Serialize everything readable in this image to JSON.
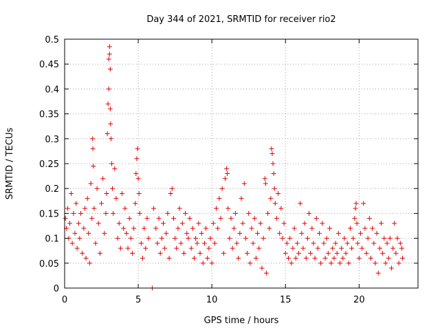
{
  "chart_data": {
    "type": "scatter",
    "title": "Day 344 of 2021, SRMTID for receiver rio2",
    "xlabel": "GPS time / hours",
    "ylabel": "SRMTID / TECUs",
    "xlim": [
      0,
      24
    ],
    "ylim": [
      0,
      0.5
    ],
    "xticks": [
      0,
      5,
      10,
      15,
      20
    ],
    "xtick_labels": [
      "0",
      "5",
      "10",
      "15",
      "20"
    ],
    "yticks": [
      0,
      0.05,
      0.1,
      0.15,
      0.2,
      0.25,
      0.3,
      0.35,
      0.4,
      0.45,
      0.5
    ],
    "ytick_labels": [
      "0",
      "0.05",
      "0.1",
      "0.15",
      "0.2",
      "0.25",
      "0.3",
      "0.35",
      "0.4",
      "0.45",
      "0.5"
    ],
    "grid": true,
    "marker": "plus",
    "color": "#e00000",
    "series": [
      {
        "name": "SRMTID",
        "points": [
          [
            0.05,
            0.14
          ],
          [
            0.12,
            0.12
          ],
          [
            0.2,
            0.16
          ],
          [
            0.28,
            0.1
          ],
          [
            0.35,
            0.13
          ],
          [
            0.45,
            0.19
          ],
          [
            0.52,
            0.09
          ],
          [
            0.6,
            0.15
          ],
          [
            0.7,
            0.11
          ],
          [
            0.78,
            0.17
          ],
          [
            0.85,
            0.08
          ],
          [
            0.95,
            0.13
          ],
          [
            1.02,
            0.1
          ],
          [
            1.1,
            0.15
          ],
          [
            1.2,
            0.07
          ],
          [
            1.3,
            0.12
          ],
          [
            1.38,
            0.16
          ],
          [
            1.45,
            0.06
          ],
          [
            1.55,
            0.18
          ],
          [
            1.62,
            0.11
          ],
          [
            1.7,
            0.05
          ],
          [
            1.78,
            0.21
          ],
          [
            1.85,
            0.14
          ],
          [
            1.9,
            0.3
          ],
          [
            1.92,
            0.28
          ],
          [
            1.95,
            0.245
          ],
          [
            2.0,
            0.16
          ],
          [
            2.1,
            0.09
          ],
          [
            2.2,
            0.2
          ],
          [
            2.3,
            0.13
          ],
          [
            2.4,
            0.07
          ],
          [
            2.5,
            0.17
          ],
          [
            2.6,
            0.22
          ],
          [
            2.7,
            0.11
          ],
          [
            2.8,
            0.15
          ],
          [
            2.85,
            0.19
          ],
          [
            2.9,
            0.31
          ],
          [
            2.95,
            0.37
          ],
          [
            3.0,
            0.4
          ],
          [
            3.0,
            0.46
          ],
          [
            3.05,
            0.485
          ],
          [
            3.05,
            0.47
          ],
          [
            3.1,
            0.44
          ],
          [
            3.1,
            0.36
          ],
          [
            3.12,
            0.33
          ],
          [
            3.15,
            0.3
          ],
          [
            3.2,
            0.25
          ],
          [
            3.25,
            0.2
          ],
          [
            3.3,
            0.15
          ],
          [
            3.4,
            0.24
          ],
          [
            3.5,
            0.18
          ],
          [
            3.6,
            0.1
          ],
          [
            3.7,
            0.13
          ],
          [
            3.8,
            0.08
          ],
          [
            3.9,
            0.19
          ],
          [
            4.0,
            0.12
          ],
          [
            4.1,
            0.16
          ],
          [
            4.2,
            0.11
          ],
          [
            4.3,
            0.08
          ],
          [
            4.4,
            0.14
          ],
          [
            4.5,
            0.1
          ],
          [
            4.6,
            0.07
          ],
          [
            4.7,
            0.12
          ],
          [
            4.8,
            0.17
          ],
          [
            4.85,
            0.23
          ],
          [
            4.9,
            0.26
          ],
          [
            4.95,
            0.28
          ],
          [
            5.0,
            0.22
          ],
          [
            5.05,
            0.19
          ],
          [
            5.1,
            0.15
          ],
          [
            5.2,
            0.09
          ],
          [
            5.3,
            0.06
          ],
          [
            5.4,
            0.12
          ],
          [
            5.5,
            0.08
          ],
          [
            5.6,
            0.14
          ],
          [
            5.7,
            0.1
          ],
          [
            5.95,
            0.0
          ],
          [
            6.05,
            0.16
          ],
          [
            6.2,
            0.12
          ],
          [
            6.3,
            0.09
          ],
          [
            6.4,
            0.14
          ],
          [
            6.5,
            0.07
          ],
          [
            6.6,
            0.1
          ],
          [
            6.7,
            0.13
          ],
          [
            6.8,
            0.08
          ],
          [
            6.9,
            0.11
          ],
          [
            7.0,
            0.15
          ],
          [
            7.1,
            0.06
          ],
          [
            7.2,
            0.19
          ],
          [
            7.3,
            0.2
          ],
          [
            7.4,
            0.14
          ],
          [
            7.5,
            0.1
          ],
          [
            7.6,
            0.08
          ],
          [
            7.7,
            0.12
          ],
          [
            7.8,
            0.16
          ],
          [
            7.9,
            0.09
          ],
          [
            8.0,
            0.13
          ],
          [
            8.1,
            0.07
          ],
          [
            8.2,
            0.15
          ],
          [
            8.3,
            0.11
          ],
          [
            8.4,
            0.1
          ],
          [
            8.5,
            0.14
          ],
          [
            8.6,
            0.08
          ],
          [
            8.7,
            0.12
          ],
          [
            8.8,
            0.06
          ],
          [
            8.9,
            0.1
          ],
          [
            9.0,
            0.09
          ],
          [
            9.1,
            0.13
          ],
          [
            9.2,
            0.07
          ],
          [
            9.3,
            0.11
          ],
          [
            9.4,
            0.05
          ],
          [
            9.5,
            0.09
          ],
          [
            9.6,
            0.12
          ],
          [
            9.7,
            0.06
          ],
          [
            9.8,
            0.08
          ],
          [
            9.9,
            0.1
          ],
          [
            10.0,
            0.05
          ],
          [
            10.1,
            0.13
          ],
          [
            10.2,
            0.09
          ],
          [
            10.3,
            0.16
          ],
          [
            10.4,
            0.12
          ],
          [
            10.5,
            0.18
          ],
          [
            10.6,
            0.14
          ],
          [
            10.7,
            0.2
          ],
          [
            10.8,
            0.07
          ],
          [
            10.9,
            0.22
          ],
          [
            11.0,
            0.24
          ],
          [
            11.05,
            0.23
          ],
          [
            11.1,
            0.16
          ],
          [
            11.2,
            0.1
          ],
          [
            11.3,
            0.14
          ],
          [
            11.4,
            0.08
          ],
          [
            11.5,
            0.12
          ],
          [
            11.6,
            0.15
          ],
          [
            11.7,
            0.09
          ],
          [
            11.8,
            0.06
          ],
          [
            11.9,
            0.11
          ],
          [
            12.0,
            0.18
          ],
          [
            12.1,
            0.13
          ],
          [
            12.2,
            0.21
          ],
          [
            12.3,
            0.1
          ],
          [
            12.4,
            0.07
          ],
          [
            12.5,
            0.15
          ],
          [
            12.6,
            0.05
          ],
          [
            12.7,
            0.12
          ],
          [
            12.8,
            0.09
          ],
          [
            12.9,
            0.14
          ],
          [
            13.0,
            0.06
          ],
          [
            13.1,
            0.11
          ],
          [
            13.2,
            0.08
          ],
          [
            13.3,
            0.13
          ],
          [
            13.4,
            0.04
          ],
          [
            13.5,
            0.1
          ],
          [
            13.6,
            0.22
          ],
          [
            13.65,
            0.21
          ],
          [
            13.7,
            0.03
          ],
          [
            13.8,
            0.15
          ],
          [
            13.9,
            0.12
          ],
          [
            14.0,
            0.18
          ],
          [
            14.05,
            0.28
          ],
          [
            14.1,
            0.27
          ],
          [
            14.15,
            0.25
          ],
          [
            14.2,
            0.23
          ],
          [
            14.25,
            0.2
          ],
          [
            14.3,
            0.17
          ],
          [
            14.4,
            0.14
          ],
          [
            14.5,
            0.19
          ],
          [
            14.6,
            0.11
          ],
          [
            14.7,
            0.16
          ],
          [
            14.8,
            0.1
          ],
          [
            14.9,
            0.13
          ],
          [
            15.0,
            0.07
          ],
          [
            15.1,
            0.09
          ],
          [
            15.2,
            0.06
          ],
          [
            15.3,
            0.1
          ],
          [
            15.4,
            0.05
          ],
          [
            15.5,
            0.08
          ],
          [
            15.6,
            0.12
          ],
          [
            15.7,
            0.06
          ],
          [
            15.8,
            0.09
          ],
          [
            15.9,
            0.07
          ],
          [
            16.0,
            0.17
          ],
          [
            16.1,
            0.11
          ],
          [
            16.2,
            0.08
          ],
          [
            16.3,
            0.13
          ],
          [
            16.4,
            0.06
          ],
          [
            16.5,
            0.1
          ],
          [
            16.6,
            0.15
          ],
          [
            16.7,
            0.07
          ],
          [
            16.8,
            0.12
          ],
          [
            16.9,
            0.09
          ],
          [
            17.0,
            0.06
          ],
          [
            17.1,
            0.14
          ],
          [
            17.2,
            0.08
          ],
          [
            17.3,
            0.11
          ],
          [
            17.4,
            0.05
          ],
          [
            17.5,
            0.13
          ],
          [
            17.6,
            0.09
          ],
          [
            17.7,
            0.06
          ],
          [
            17.8,
            0.1
          ],
          [
            17.9,
            0.07
          ],
          [
            18.0,
            0.12
          ],
          [
            18.1,
            0.05
          ],
          [
            18.2,
            0.08
          ],
          [
            18.3,
            0.06
          ],
          [
            18.4,
            0.09
          ],
          [
            18.5,
            0.07
          ],
          [
            18.6,
            0.11
          ],
          [
            18.7,
            0.05
          ],
          [
            18.8,
            0.08
          ],
          [
            18.9,
            0.06
          ],
          [
            19.0,
            0.1
          ],
          [
            19.1,
            0.07
          ],
          [
            19.2,
            0.09
          ],
          [
            19.3,
            0.05
          ],
          [
            19.4,
            0.12
          ],
          [
            19.5,
            0.08
          ],
          [
            19.6,
            0.1
          ],
          [
            19.7,
            0.14
          ],
          [
            19.75,
            0.16
          ],
          [
            19.8,
            0.17
          ],
          [
            19.85,
            0.13
          ],
          [
            19.9,
            0.09
          ],
          [
            20.0,
            0.06
          ],
          [
            20.1,
            0.11
          ],
          [
            20.2,
            0.08
          ],
          [
            20.3,
            0.17
          ],
          [
            20.4,
            0.12
          ],
          [
            20.5,
            0.07
          ],
          [
            20.6,
            0.1
          ],
          [
            20.7,
            0.14
          ],
          [
            20.8,
            0.06
          ],
          [
            20.9,
            0.12
          ],
          [
            21.0,
            0.09
          ],
          [
            21.1,
            0.05
          ],
          [
            21.2,
            0.11
          ],
          [
            21.3,
            0.03
          ],
          [
            21.4,
            0.08
          ],
          [
            21.5,
            0.13
          ],
          [
            21.6,
            0.07
          ],
          [
            21.7,
            0.1
          ],
          [
            21.8,
            0.05
          ],
          [
            21.9,
            0.09
          ],
          [
            22.0,
            0.06
          ],
          [
            22.1,
            0.1
          ],
          [
            22.2,
            0.04
          ],
          [
            22.3,
            0.08
          ],
          [
            22.4,
            0.13
          ],
          [
            22.5,
            0.07
          ],
          [
            22.6,
            0.1
          ],
          [
            22.7,
            0.05
          ],
          [
            22.8,
            0.09
          ],
          [
            22.9,
            0.08
          ],
          [
            22.95,
            0.06
          ]
        ]
      }
    ]
  }
}
